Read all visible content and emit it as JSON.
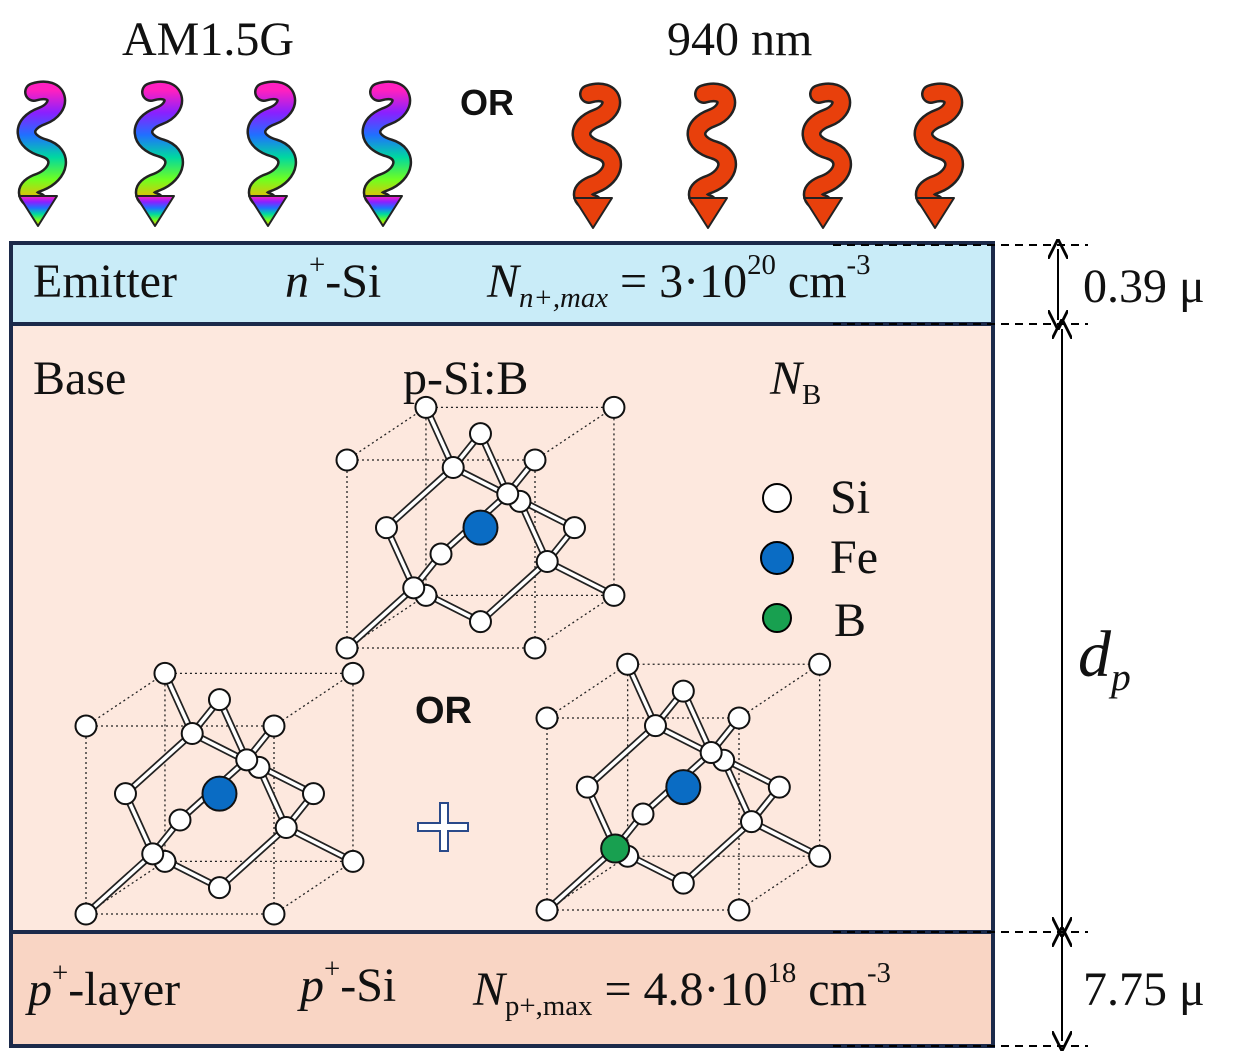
{
  "illumination": {
    "left_label": "AM1.5G",
    "or_label": "OR",
    "right_label": "940 nm",
    "left_arrow_count": 4,
    "right_arrow_count": 4,
    "right_arrow_color": "#e8400c"
  },
  "layers": {
    "emitter": {
      "name": "Emitter",
      "material_sym": "n",
      "material_sup": "+",
      "material_rest": "-Si",
      "conc_sym": "N",
      "conc_sub": "n+,max",
      "conc_value": "= 3·10",
      "conc_exp": "20",
      "conc_unit": "cm",
      "conc_unit_exp": "-3",
      "thickness": "0.39 μ",
      "fill": "#c9ecf8"
    },
    "base": {
      "name": "Base",
      "material": "p-Si:B",
      "conc_sym": "N",
      "conc_sub": "B",
      "thickness_sym": "d",
      "thickness_sub": "p",
      "or_label": "OR",
      "fill": "#fde8de"
    },
    "player": {
      "name_sym": "p",
      "name_sup": "+",
      "name_rest": "-layer",
      "material_sym": "p",
      "material_sup": "+",
      "material_rest": "-Si",
      "conc_sym": "N",
      "conc_sub": "p+,max",
      "conc_value": "= 4.8·10",
      "conc_exp": "18",
      "conc_unit": "cm",
      "conc_unit_exp": "-3",
      "thickness": "7.75 μ",
      "fill": "#f9d5c4"
    }
  },
  "legend": [
    {
      "label": "Si",
      "color": "#ffffff"
    },
    {
      "label": "Fe",
      "color": "#0a6cc4"
    },
    {
      "label": "B",
      "color": "#18a050"
    }
  ],
  "colors": {
    "border": "#1c2a4a",
    "plus_sign": "#2a4a8a"
  }
}
